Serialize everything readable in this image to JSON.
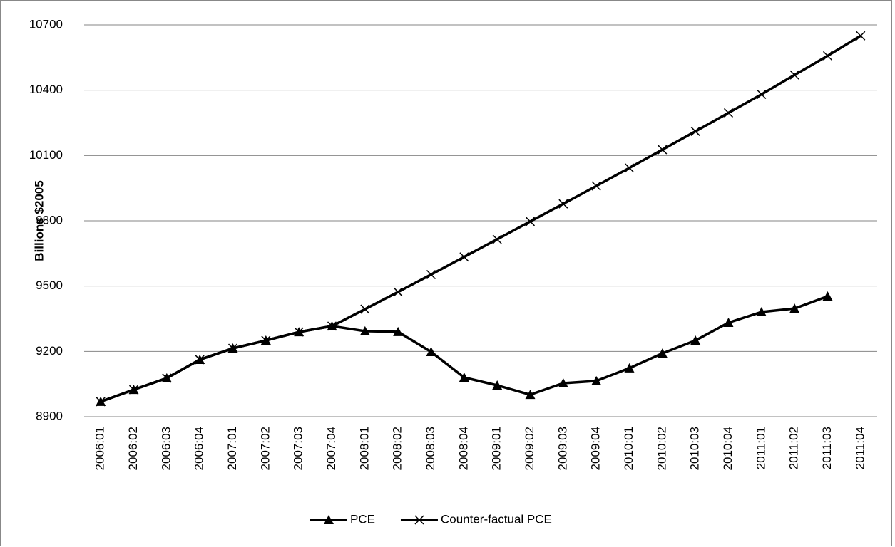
{
  "chart_data": {
    "type": "line",
    "y_label": "Billions $2005",
    "categories": [
      "2006:01",
      "2006:02",
      "2006:03",
      "2006:04",
      "2007:01",
      "2007:02",
      "2007:03",
      "2007:04",
      "2008:01",
      "2008:02",
      "2008:03",
      "2008:04",
      "2009:01",
      "2009:02",
      "2009:03",
      "2009:04",
      "2010:01",
      "2010:02",
      "2010:03",
      "2010:04",
      "2011:01",
      "2011:02",
      "2011:03",
      "2011:04"
    ],
    "series": [
      {
        "name": "PCE",
        "color": "#000000",
        "marker": "triangle",
        "values": [
          8969,
          9024,
          9077,
          9162,
          9214,
          9250,
          9289,
          9316,
          9293,
          9290,
          9198,
          9080,
          9044,
          9001,
          9054,
          9064,
          9123,
          9191,
          9250,
          9332,
          9381,
          9397,
          9453,
          null
        ]
      },
      {
        "name": "Counter-factual PCE",
        "color": "#000000",
        "marker": "x",
        "values": [
          8969,
          9024,
          9077,
          9162,
          9214,
          9250,
          9289,
          9316,
          9394,
          9473,
          9553,
          9634,
          9715,
          9797,
          9878,
          9960,
          10043,
          10127,
          10211,
          10296,
          10381,
          10470,
          10558,
          10650
        ]
      }
    ],
    "ylim": [
      8900,
      10700
    ],
    "yticks": [
      8900,
      9200,
      9500,
      9800,
      10100,
      10400,
      10700
    ],
    "grid": true,
    "legend": "bottom"
  }
}
